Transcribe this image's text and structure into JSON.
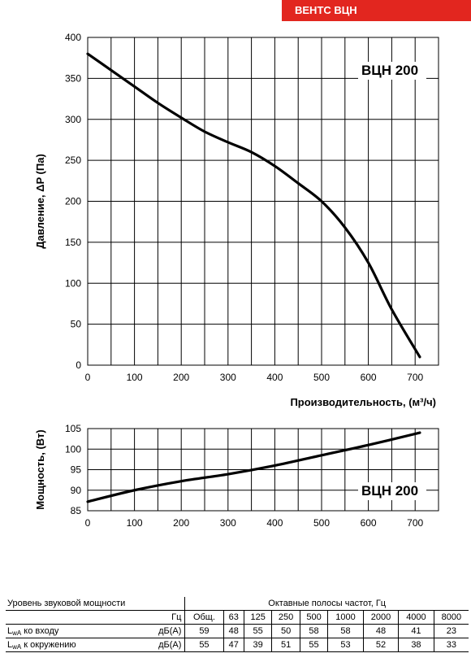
{
  "brand": "ВЕНТС ВЦН",
  "chart_data": [
    {
      "type": "line",
      "model_label": "ВЦН 200",
      "xlabel": "Производительность, (м³/ч)",
      "ylabel": "Давление, ΔP (Па)",
      "xlim": [
        0,
        750
      ],
      "ylim": [
        0,
        400
      ],
      "x_ticks": [
        0,
        100,
        200,
        300,
        400,
        500,
        600,
        700
      ],
      "y_ticks": [
        0,
        50,
        100,
        150,
        200,
        250,
        300,
        350,
        400
      ],
      "grid": true,
      "series": [
        {
          "x": [
            0,
            50,
            100,
            150,
            200,
            250,
            300,
            350,
            400,
            450,
            500,
            550,
            600,
            650,
            710
          ],
          "y": [
            380,
            360,
            340,
            320,
            302,
            285,
            272,
            260,
            243,
            222,
            200,
            168,
            125,
            68,
            10
          ]
        }
      ]
    },
    {
      "type": "line",
      "model_label": "ВЦН 200",
      "ylabel": "Мощность, (Вт)",
      "xlim": [
        0,
        750
      ],
      "ylim": [
        85,
        105
      ],
      "x_ticks": [
        0,
        100,
        200,
        300,
        400,
        500,
        600,
        700
      ],
      "y_ticks": [
        85,
        90,
        95,
        100,
        105
      ],
      "grid": true,
      "series": [
        {
          "x": [
            0,
            100,
            200,
            300,
            400,
            500,
            600,
            710
          ],
          "y": [
            87.2,
            90.0,
            92.2,
            93.9,
            96.0,
            98.5,
            101.0,
            104.0
          ]
        }
      ]
    }
  ],
  "sound_table": {
    "title": "Уровень звуковой мощности",
    "bands_title": "Октавные полосы частот, Гц",
    "unit_header": "Гц",
    "columns": [
      "Общ.",
      "63",
      "125",
      "250",
      "500",
      "1000",
      "2000",
      "4000",
      "8000"
    ],
    "rows": [
      {
        "label_main": "L",
        "label_sub": "wA",
        "label_rest": " ко входу",
        "unit": "дБ(А)",
        "values": [
          "59",
          "48",
          "55",
          "50",
          "58",
          "58",
          "48",
          "41",
          "23"
        ]
      },
      {
        "label_main": "L",
        "label_sub": "wA",
        "label_rest": " к окружению",
        "unit": "дБ(А)",
        "values": [
          "55",
          "47",
          "39",
          "51",
          "55",
          "53",
          "52",
          "38",
          "33"
        ]
      }
    ]
  }
}
